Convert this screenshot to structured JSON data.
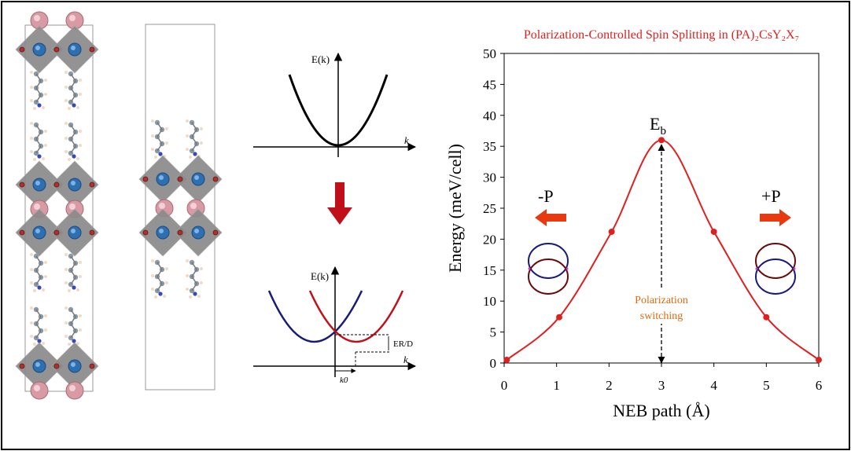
{
  "dispersion_top": {
    "y_label": "E(k)",
    "x_label": "k"
  },
  "dispersion_bottom": {
    "y_label": "E(k)",
    "x_label": "k",
    "k0_label": "k0",
    "er_label": "ER/D"
  },
  "colors": {
    "red": "#e02020",
    "navy": "#1a1a7a",
    "dark_red": "#c0101a",
    "arrow_red": "#e83a10",
    "orange_text": "#e06a10",
    "octa_grey": "#8a8a8a",
    "cs_pink": "#d89aa4",
    "b_blue": "#2e6fb0"
  },
  "chart_data": {
    "type": "line",
    "title": "Polarization-Controlled Spin Splitting in (PA)₂CsY₂X₇",
    "xlabel": "NEB path (Å)",
    "ylabel": "Energy (meV/cell)",
    "xlim": [
      0,
      6
    ],
    "ylim": [
      0,
      50
    ],
    "x_ticks": [
      "0",
      "1",
      "2",
      "3",
      "4",
      "5",
      "6"
    ],
    "y_ticks": [
      "0",
      "5",
      "10",
      "15",
      "20",
      "25",
      "30",
      "35",
      "40",
      "45",
      "50"
    ],
    "x": [
      0.05,
      1.05,
      2.05,
      3.0,
      4.0,
      5.0,
      6.0
    ],
    "values": [
      0.5,
      7.4,
      21.2,
      36.0,
      21.2,
      7.4,
      0.5
    ],
    "annotations": {
      "barrier": "Eb",
      "switching_line1": "Polarization",
      "switching_line2": "switching",
      "minus_p": "-P",
      "plus_p": "+P"
    }
  }
}
